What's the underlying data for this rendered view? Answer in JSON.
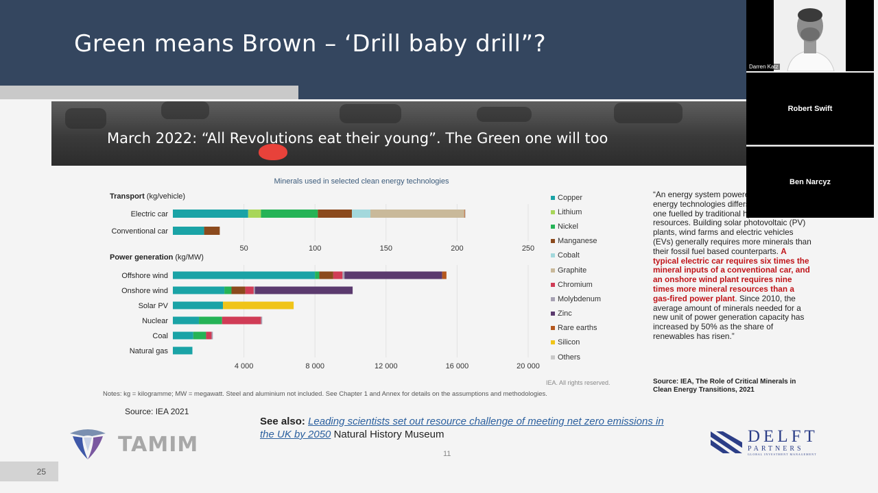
{
  "slide": {
    "title": "Green means Brown – ‘Drill baby drill”?",
    "banner_text": "March 2022: “All Revolutions eat their young”. The Green one will too",
    "source_small": "Source: IEA 2021",
    "see_also_label": "See also:",
    "see_also_link": "Leading scientists set out resource challenge of meeting net zero emissions in the UK by 2050",
    "see_also_rest": " Natural History Museum",
    "page_number": "11",
    "slide_number": "25",
    "notes": "Notes: kg = kilogramme; MW = megawatt. Steel and aluminium not included. See Chapter 1 and Annex for details on the assumptions and methodologies.",
    "rights": "IEA. All rights reserved.",
    "quote_part1": "“An energy system powered by clean energy technologies differs profoundly from one fuelled by traditional hydrocarbon resources. Building solar photovoltaic (PV) plants, wind farms and electric vehicles (EVs) generally requires more minerals than their fossil fuel based counterparts. ",
    "quote_red": "A typical electric car requires six times the mineral inputs of a conventional car, and an onshore wind plant requires nine times more mineral resources than a gas-fired power plant",
    "quote_part2": ". Since 2010, the average amount of minerals needed for a new unit of power generation capacity has increased by 50% as the share of renewables has risen.”",
    "quote_source": "Source: IEA, The Role of Critical Minerals in Clean Energy Transitions, 2021",
    "logo_left": "TAMIM",
    "logo_right_big": "DELFT",
    "logo_right_mid": "PARTNERS",
    "logo_right_small": "GLOBAL INVESTMENT MANAGEMENT",
    "colors": {
      "header": "#34465f",
      "quote_highlight": "#c0151a",
      "link": "#2a5f9e"
    }
  },
  "video_call": {
    "participants": [
      {
        "name": "Darren Katz",
        "has_video": true
      },
      {
        "name": "Robert Swift",
        "has_video": false
      },
      {
        "name": "Ben Narcyz",
        "has_video": false
      }
    ]
  },
  "chart_data": {
    "type": "bar",
    "stacked": true,
    "orientation": "horizontal",
    "title": "Minerals used in selected clean energy technologies",
    "minerals": [
      "Copper",
      "Lithium",
      "Nickel",
      "Manganese",
      "Cobalt",
      "Graphite",
      "Chromium",
      "Molybdenum",
      "Zinc",
      "Rare earths",
      "Silicon",
      "Others"
    ],
    "colors": [
      "#1aa3a6",
      "#a8d65a",
      "#25b356",
      "#8b4a1d",
      "#a3d8dc",
      "#c9b99a",
      "#d03c56",
      "#a6a1b3",
      "#5b3a6e",
      "#b5581e",
      "#f0c419",
      "#c8c8c8"
    ],
    "panels": [
      {
        "label": "Transport",
        "unit": "(kg/vehicle)",
        "xlim": [
          0,
          250
        ],
        "ticks": [
          "50",
          "100",
          "150",
          "200",
          "250"
        ],
        "tick_values": [
          50,
          100,
          150,
          200,
          250
        ],
        "categories": [
          "Electric car",
          "Conventional car"
        ],
        "values": [
          [
            53,
            9,
            40,
            24,
            13,
            66,
            0,
            0,
            0,
            0.5,
            0,
            0.5
          ],
          [
            22,
            0,
            0,
            11,
            0,
            0,
            0,
            0,
            0,
            0,
            0,
            0
          ]
        ]
      },
      {
        "label": "Power generation",
        "unit": "(kg/MW)",
        "xlim": [
          0,
          20000
        ],
        "ticks": [
          "4 000",
          "8 000",
          "12 000",
          "16 000",
          "20 000"
        ],
        "tick_values": [
          4000,
          8000,
          12000,
          16000,
          20000
        ],
        "categories": [
          "Offshore wind",
          "Onshore wind",
          "Solar PV",
          "Nuclear",
          "Coal",
          "Natural gas"
        ],
        "values": [
          [
            8000,
            0,
            240,
            790,
            0,
            0,
            520,
            110,
            5500,
            240,
            0,
            0
          ],
          [
            2900,
            0,
            400,
            780,
            0,
            0,
            470,
            70,
            5500,
            0,
            0,
            0
          ],
          [
            2820,
            0,
            0,
            0,
            0,
            0,
            0,
            0,
            0,
            0,
            3980,
            0
          ],
          [
            1470,
            0,
            1300,
            0,
            0,
            0,
            2190,
            70,
            0,
            0,
            0,
            0
          ],
          [
            1150,
            0,
            720,
            0,
            0,
            0,
            310,
            70,
            0,
            0,
            0,
            0
          ],
          [
            1100,
            0,
            0,
            0,
            0,
            0,
            0,
            0,
            0,
            0,
            0,
            0
          ]
        ]
      }
    ]
  }
}
